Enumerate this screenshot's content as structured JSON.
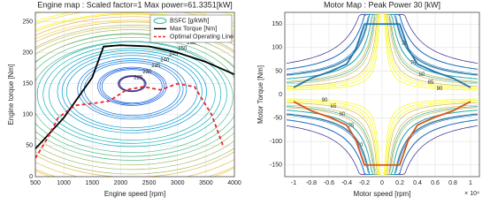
{
  "chart_data": [
    {
      "type": "contour",
      "title": "Engine map : Scaled factor=1 Max power=61.3351[kW]",
      "x_label": "Engine speed [rpm]",
      "y_label": "Engine torque [Nm]",
      "xlim": [
        500,
        4000
      ],
      "xticks": [
        500,
        1000,
        1500,
        2000,
        2500,
        3000,
        3500,
        4000
      ],
      "ylim": [
        0,
        265
      ],
      "yticks": [
        0,
        50,
        100,
        150,
        200,
        250
      ],
      "grid": true,
      "contour_name": "BSFC [g/kWh]",
      "contour_levels": [
        225,
        230,
        235,
        240,
        245,
        250,
        260,
        270,
        280,
        300
      ],
      "legend": "northeast",
      "series": [
        {
          "name": "Max Torque [Nm]",
          "color": "#000000",
          "dash": false,
          "x": [
            500,
            1000,
            1500,
            1700,
            2000,
            2500,
            3000,
            3500,
            4000
          ],
          "values": [
            45,
            95,
            160,
            210,
            212,
            210,
            200,
            185,
            165
          ]
        },
        {
          "name": "Optimal Operating Line",
          "color": "#e8262a",
          "dash": true,
          "x": [
            500,
            700,
            900,
            1200,
            1500,
            1800,
            2100,
            2400,
            2700,
            3000,
            3300,
            3600,
            3800
          ],
          "values": [
            30,
            60,
            95,
            115,
            118,
            122,
            140,
            145,
            140,
            150,
            145,
            100,
            50
          ]
        }
      ]
    },
    {
      "type": "contour",
      "title": "Motor Map : Peak Power 30 [kW]",
      "x_label": "Motor speed [rpm]",
      "y_label": "Motor Torque [Nm]",
      "x_multiplier": "× 10⁴",
      "xlim": [
        -1.1,
        1.1
      ],
      "xticks": [
        -1,
        -0.8,
        -0.6,
        -0.4,
        -0.2,
        0,
        0.2,
        0.4,
        0.6,
        0.8,
        1
      ],
      "ylim": [
        -175,
        175
      ],
      "yticks": [
        -150,
        -100,
        -50,
        0,
        50,
        100,
        150
      ],
      "grid": true,
      "contour_levels": [
        70,
        75,
        80,
        85,
        90
      ],
      "series": [
        {
          "color": "#1f77b4",
          "dash": false,
          "x": [
            -1,
            -0.8,
            -0.6,
            -0.4,
            -0.3,
            -0.2,
            0.2,
            0.3,
            0.4,
            0.6,
            0.8,
            1
          ],
          "values": [
            15,
            35,
            48,
            65,
            95,
            150,
            150,
            95,
            65,
            48,
            35,
            15
          ]
        },
        {
          "color": "#d9541a",
          "dash": false,
          "x": [
            -1,
            -0.8,
            -0.6,
            -0.4,
            -0.3,
            -0.2,
            0.2,
            0.3,
            0.4,
            0.6,
            0.8,
            1
          ],
          "values": [
            -15,
            -35,
            -48,
            -65,
            -95,
            -150,
            -150,
            -95,
            -65,
            -48,
            -35,
            -15
          ]
        }
      ]
    }
  ]
}
